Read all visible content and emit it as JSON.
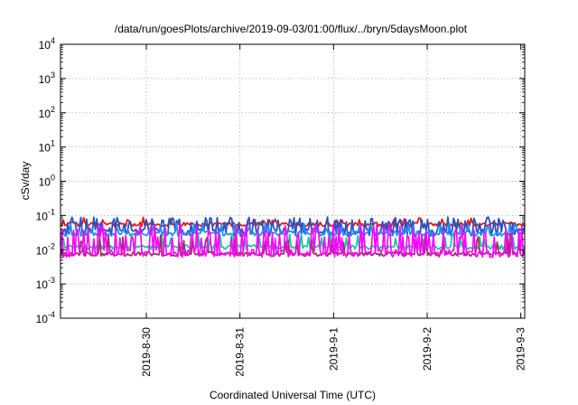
{
  "chart_data": {
    "type": "line",
    "title": "/data/run/goesPlots/archive/2019-09-03/01:00/flux/../bryn/5daysMoon.plot",
    "xlabel": "Coordinated Universal Time (UTC)",
    "ylabel": "cSv/day",
    "yscale": "log",
    "ylim": [
      0.0001,
      10000
    ],
    "yticks": [
      {
        "base": "10",
        "exp": "-4",
        "value": 0.0001
      },
      {
        "base": "10",
        "exp": "-3",
        "value": 0.001
      },
      {
        "base": "10",
        "exp": "-2",
        "value": 0.01
      },
      {
        "base": "10",
        "exp": "-1",
        "value": 0.1
      },
      {
        "base": "10",
        "exp": "0",
        "value": 1
      },
      {
        "base": "10",
        "exp": "1",
        "value": 10
      },
      {
        "base": "10",
        "exp": "2",
        "value": 100
      },
      {
        "base": "10",
        "exp": "3",
        "value": 1000
      },
      {
        "base": "10",
        "exp": "4",
        "value": 10000
      }
    ],
    "xlim": [
      "2019-08-29T02:00",
      "2019-09-03T01:00"
    ],
    "xticks": [
      {
        "label": "2019-8-30",
        "value": "2019-08-30T00:00"
      },
      {
        "label": "2019-8-31",
        "value": "2019-08-31T00:00"
      },
      {
        "label": "2019-9-1",
        "value": "2019-09-01T00:00"
      },
      {
        "label": "2019-9-2",
        "value": "2019-09-02T00:00"
      },
      {
        "label": "2019-9-3",
        "value": "2019-09-03T00:00"
      }
    ],
    "grid": true,
    "series": [
      {
        "color": "#e41a1c",
        "base": 0.055,
        "noise": 0.12,
        "spike": 0.08,
        "spike_max": 0.09
      },
      {
        "color": "#2a52be",
        "base": 0.033,
        "noise": 0.25,
        "spike": 0.28,
        "spike_max": 0.09
      },
      {
        "color": "#1e90ff",
        "base": 0.03,
        "noise": 0.15,
        "spike": 0.1,
        "spike_max": 0.06
      },
      {
        "color": "#1cc6a0",
        "base": 0.012,
        "noise": 0.12,
        "spike": 0.1,
        "spike_max": 0.03
      },
      {
        "color": "#a0306a",
        "base": 0.0075,
        "noise": 0.12,
        "spike": 0.1,
        "spike_max": 0.03
      },
      {
        "color": "#ff00ff",
        "base": 0.0078,
        "noise": 0.22,
        "spike": 0.3,
        "spike_max": 0.055
      }
    ]
  }
}
